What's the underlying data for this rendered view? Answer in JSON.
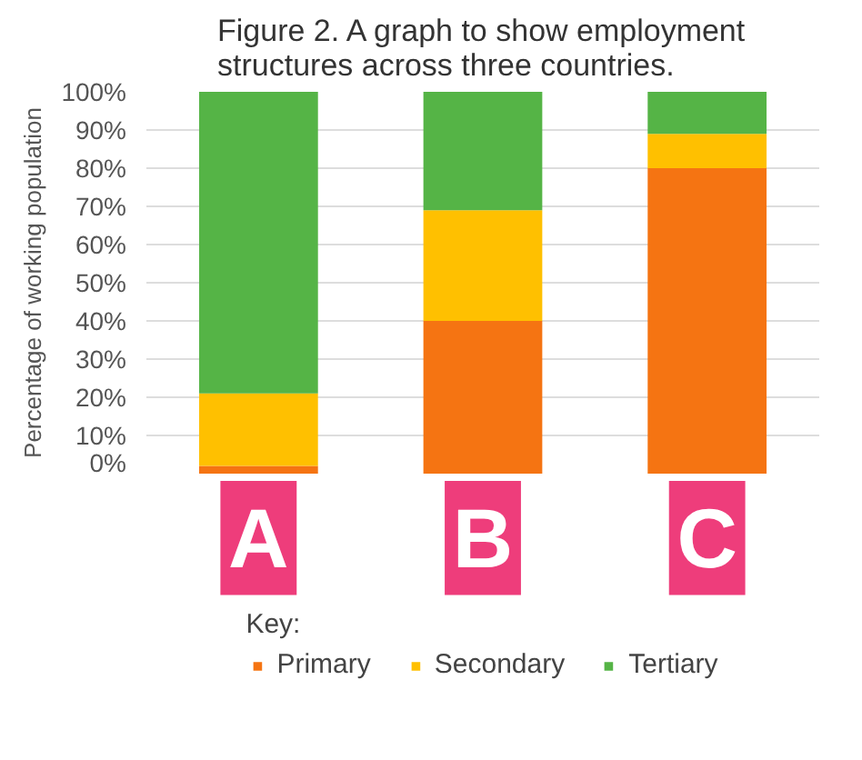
{
  "chart_data": {
    "type": "bar",
    "stacked": true,
    "title": "Figure 2. A graph to show employment structures across three countries.",
    "ylabel": "Percentage of working population",
    "legend_title": "Key:",
    "categories": [
      "A",
      "B",
      "C"
    ],
    "series": [
      {
        "name": "Primary",
        "color": "#f57412",
        "values": [
          2,
          40,
          80
        ]
      },
      {
        "name": "Secondary",
        "color": "#ffc000",
        "values": [
          19,
          29,
          9
        ]
      },
      {
        "name": "Tertiary",
        "color": "#55b446",
        "values": [
          79,
          31,
          11
        ]
      }
    ],
    "ylim": [
      0,
      100
    ],
    "yticks": [
      {
        "value": 0,
        "label": "0%"
      },
      {
        "value": 10,
        "label": "10%"
      },
      {
        "value": 20,
        "label": "20%"
      },
      {
        "value": 30,
        "label": "30%"
      },
      {
        "value": 40,
        "label": "40%"
      },
      {
        "value": 50,
        "label": "50%"
      },
      {
        "value": 60,
        "label": "60%"
      },
      {
        "value": 70,
        "label": "70%"
      },
      {
        "value": 80,
        "label": "80%"
      },
      {
        "value": 90,
        "label": "90%"
      },
      {
        "value": 100,
        "label": "100%"
      }
    ],
    "grid": "y",
    "legend": "bottom"
  }
}
